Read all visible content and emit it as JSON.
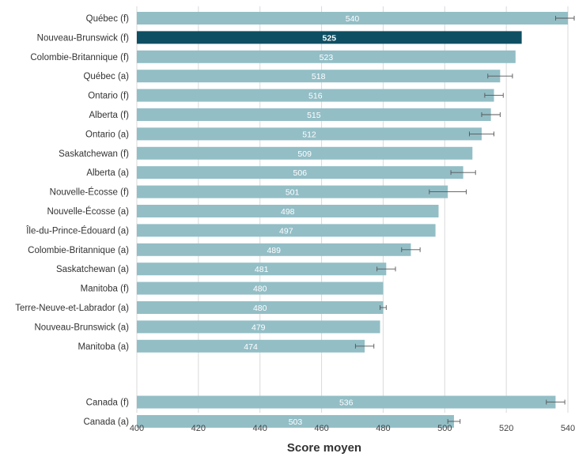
{
  "chart_data": {
    "type": "bar",
    "orientation": "horizontal",
    "xlabel": "Score moyen",
    "xlim": [
      400,
      540
    ],
    "xticks": [
      400,
      420,
      440,
      460,
      480,
      500,
      520,
      540
    ],
    "grid": true,
    "legend": "none",
    "colors": {
      "bar": "#93bec6",
      "highlight": "#0e4f63",
      "error_bar": "#555555",
      "grid": "#d9d9d9"
    },
    "categories": [
      "Québec (f)",
      "Nouveau-Brunswick (f)",
      "Colombie-Britannique (f)",
      "Québec (a)",
      "Ontario (f)",
      "Alberta (f)",
      "Ontario (a)",
      "Saskatchewan (f)",
      "Alberta (a)",
      "Nouvelle-Écosse (f)",
      "Nouvelle-Écosse (a)",
      "Île-du-Prince-Édouard (a)",
      "Colombie-Britannique (a)",
      "Saskatchewan (a)",
      "Manitoba (f)",
      "Terre-Neuve-et-Labrador (a)",
      "Nouveau-Brunswick (a)",
      "Manitoba (a)",
      "Canada (f)",
      "Canada (a)"
    ],
    "values": [
      540,
      525,
      523,
      518,
      516,
      515,
      512,
      509,
      506,
      501,
      498,
      497,
      489,
      481,
      480,
      480,
      479,
      474,
      536,
      503
    ],
    "labels": [
      "540",
      "525",
      "523",
      "518",
      "516",
      "515",
      "512",
      "509",
      "506",
      "501",
      "498",
      "497",
      "489",
      "481",
      "480",
      "480",
      "479",
      "474",
      "536",
      "503"
    ],
    "error_margins": [
      4,
      0,
      0,
      4,
      3,
      3,
      4,
      0,
      4,
      6,
      0,
      0,
      3,
      3,
      0,
      1,
      0,
      3,
      3,
      2
    ],
    "highlight_index": 1,
    "group_break_before_index": 18
  }
}
